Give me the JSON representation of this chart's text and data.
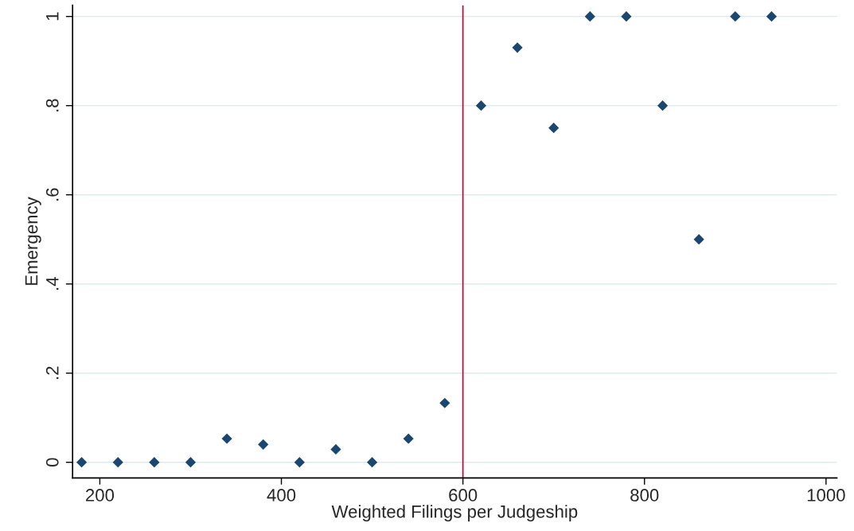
{
  "chart_data": {
    "type": "scatter",
    "xlabel": "Weighted Filings per Judgeship",
    "ylabel": "Emergency",
    "x": [
      180,
      220,
      260,
      300,
      340,
      380,
      420,
      460,
      500,
      540,
      580,
      620,
      660,
      700,
      740,
      780,
      820,
      860,
      900,
      940
    ],
    "series": [
      {
        "color": "#1a476f",
        "values": [
          0,
          0,
          0,
          0,
          0.053,
          0.04,
          0,
          0.029,
          0,
          0.053,
          0.133,
          0.8,
          0.93,
          0.75,
          1,
          1,
          0.8,
          0.5,
          1,
          1
        ]
      }
    ],
    "xlim": [
      170,
      1012
    ],
    "xticks": [
      200,
      400,
      600,
      800,
      1000
    ],
    "ylim": [
      -0.035,
      1.025
    ],
    "yticks": [
      0,
      {
        "value": 0.2,
        "label": ".2"
      },
      {
        "value": 0.4,
        "label": ".4"
      },
      {
        "value": 0.6,
        "label": ".6"
      },
      {
        "value": 0.8,
        "label": ".8"
      },
      1
    ],
    "ref_lines": [
      {
        "axis": "x",
        "value": 600,
        "color": "#c10534"
      }
    ],
    "grid": "y",
    "marker": "diamond"
  }
}
